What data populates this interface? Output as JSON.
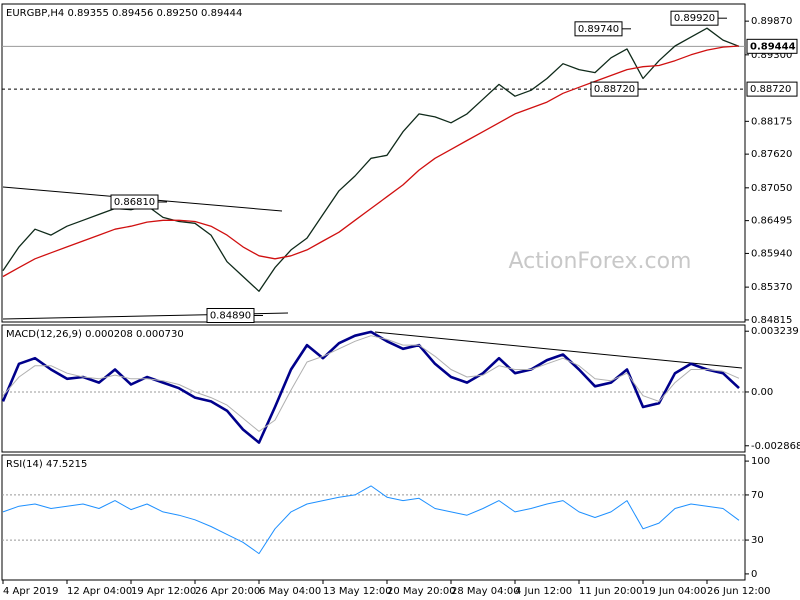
{
  "chart_data": [
    {
      "type": "line",
      "title": "EURGBP,H4  0.89355 0.89456 0.89250 0.89444",
      "watermark": "ActionForex.com",
      "categories": [
        "4 Apr 2019",
        null,
        null,
        null,
        "12 Apr 04:00",
        null,
        null,
        null,
        "19 Apr 12:00",
        null,
        null,
        null,
        "26 Apr 20:00",
        null,
        null,
        null,
        "6 May 04:00",
        null,
        null,
        null,
        "13 May 12:00",
        null,
        null,
        null,
        "20 May 20:00",
        null,
        null,
        null,
        "28 May 04:00",
        null,
        null,
        null,
        "4 Jun 12:00",
        null,
        null,
        null,
        "11 Jun 20:00",
        null,
        null,
        null,
        "19 Jun 04:00",
        null,
        null,
        null,
        "26 Jun 12:00",
        null,
        null
      ],
      "series": [
        {
          "color": "#0f2a1a",
          "width": 1.3,
          "values": [
            0.8565,
            0.8605,
            0.8635,
            0.8625,
            0.864,
            0.865,
            0.866,
            0.867,
            0.8668,
            0.8675,
            0.8655,
            0.8648,
            0.8645,
            0.8625,
            0.858,
            0.8555,
            0.853,
            0.857,
            0.86,
            0.862,
            0.866,
            0.87,
            0.8725,
            0.8755,
            0.876,
            0.88,
            0.883,
            0.8825,
            0.8815,
            0.883,
            0.8855,
            0.888,
            0.886,
            0.887,
            0.889,
            0.8915,
            0.8905,
            0.89,
            0.8925,
            0.894,
            0.889,
            0.892,
            0.8945,
            0.896,
            0.8975,
            0.8955,
            0.89444
          ]
        },
        {
          "color": "#d01010",
          "width": 1.3,
          "values": [
            0.8555,
            0.857,
            0.8585,
            0.8595,
            0.8605,
            0.8615,
            0.8625,
            0.8635,
            0.864,
            0.8647,
            0.865,
            0.865,
            0.8648,
            0.864,
            0.8625,
            0.8605,
            0.859,
            0.8585,
            0.859,
            0.86,
            0.8615,
            0.863,
            0.865,
            0.867,
            0.869,
            0.871,
            0.8735,
            0.8755,
            0.877,
            0.8785,
            0.88,
            0.8815,
            0.883,
            0.884,
            0.885,
            0.8865,
            0.8875,
            0.8885,
            0.8895,
            0.8905,
            0.891,
            0.8912,
            0.892,
            0.893,
            0.8938,
            0.8943,
            0.8945
          ]
        }
      ],
      "ylim": [
        0.8478,
        0.9016
      ],
      "yticks": [
        0.84815,
        {
          "value": 0.8537,
          "label": "0.85370"
        },
        {
          "value": 0.8594,
          "label": "0.85940"
        },
        0.86495,
        {
          "value": 0.8705,
          "label": "0.87050"
        },
        {
          "value": 0.8762,
          "label": "0.87620"
        },
        0.88175,
        {
          "value": 0.893,
          "label": "0.89300"
        },
        {
          "value": 0.8987,
          "label": "0.89870"
        }
      ],
      "current": {
        "value": 0.89444,
        "label": "0.89444"
      },
      "levels": [
        {
          "value": 0.8872,
          "label": "0.88720"
        }
      ],
      "annotations": [
        {
          "label": "0.86810",
          "value": 0.8681,
          "index": 10
        },
        {
          "label": "0.84890",
          "value": 0.8489,
          "index": 16
        },
        {
          "label": "0.89740",
          "value": 0.8974,
          "index": 39
        },
        {
          "label": "0.88720",
          "value": 0.8872,
          "index": 40
        },
        {
          "label": "0.89920",
          "value": 0.8992,
          "index": 45
        }
      ]
    },
    {
      "type": "line",
      "title": "MACD(12,26,9) 0.000208 0.000730",
      "series": [
        {
          "color": "#00008b",
          "width": 2.6,
          "values": [
            -0.0005,
            0.0015,
            0.0018,
            0.0012,
            0.0007,
            0.0008,
            0.0005,
            0.0012,
            0.0004,
            0.0008,
            0.0005,
            0.0002,
            -0.0003,
            -0.0005,
            -0.001,
            -0.002,
            -0.0027,
            -0.0008,
            0.0012,
            0.0025,
            0.0018,
            0.0026,
            0.003,
            0.0032,
            0.0027,
            0.0023,
            0.0025,
            0.0015,
            0.0008,
            0.0005,
            0.001,
            0.0018,
            0.001,
            0.0012,
            0.0017,
            0.002,
            0.0012,
            0.0003,
            0.0005,
            0.0012,
            -0.0008,
            -0.0006,
            0.001,
            0.0015,
            0.0012,
            0.001,
            0.000208
          ]
        },
        {
          "color": "#b0b0b0",
          "width": 1,
          "values": [
            -0.0002,
            0.0008,
            0.0014,
            0.0014,
            0.001,
            0.0008,
            0.0007,
            0.0009,
            0.0007,
            0.0007,
            0.0006,
            0.0004,
            0,
            -0.0003,
            -0.0007,
            -0.0014,
            -0.0021,
            -0.0015,
            0.0001,
            0.0016,
            0.0019,
            0.0023,
            0.0027,
            0.003,
            0.0028,
            0.0025,
            0.0025,
            0.0019,
            0.0012,
            0.0008,
            0.0009,
            0.0014,
            0.0012,
            0.0012,
            0.0015,
            0.0018,
            0.0014,
            0.0007,
            0.0006,
            0.001,
            -0.0002,
            -0.0005,
            0.0005,
            0.0012,
            0.0012,
            0.0011,
            0.00073
          ]
        }
      ],
      "ylim": [
        -0.0032,
        0.00357
      ],
      "yticks": [
        -0.002868,
        {
          "value": 0,
          "label": "0.00"
        },
        0.003239
      ],
      "levels": [
        0
      ]
    },
    {
      "type": "line",
      "title": "RSI(14) 47.5215",
      "series": [
        {
          "color": "#1e90ff",
          "width": 1,
          "values": [
            55,
            60,
            62,
            58,
            60,
            62,
            58,
            65,
            57,
            62,
            55,
            52,
            48,
            42,
            35,
            28,
            18,
            40,
            55,
            62,
            65,
            68,
            70,
            78,
            68,
            65,
            67,
            58,
            55,
            52,
            58,
            65,
            55,
            58,
            62,
            65,
            55,
            50,
            55,
            65,
            40,
            45,
            58,
            62,
            60,
            58,
            47.5215
          ]
        }
      ],
      "ylim": [
        -5.4,
        105.4
      ],
      "yticks": [
        0,
        30,
        70,
        100
      ],
      "levels": [
        30,
        70
      ]
    }
  ]
}
